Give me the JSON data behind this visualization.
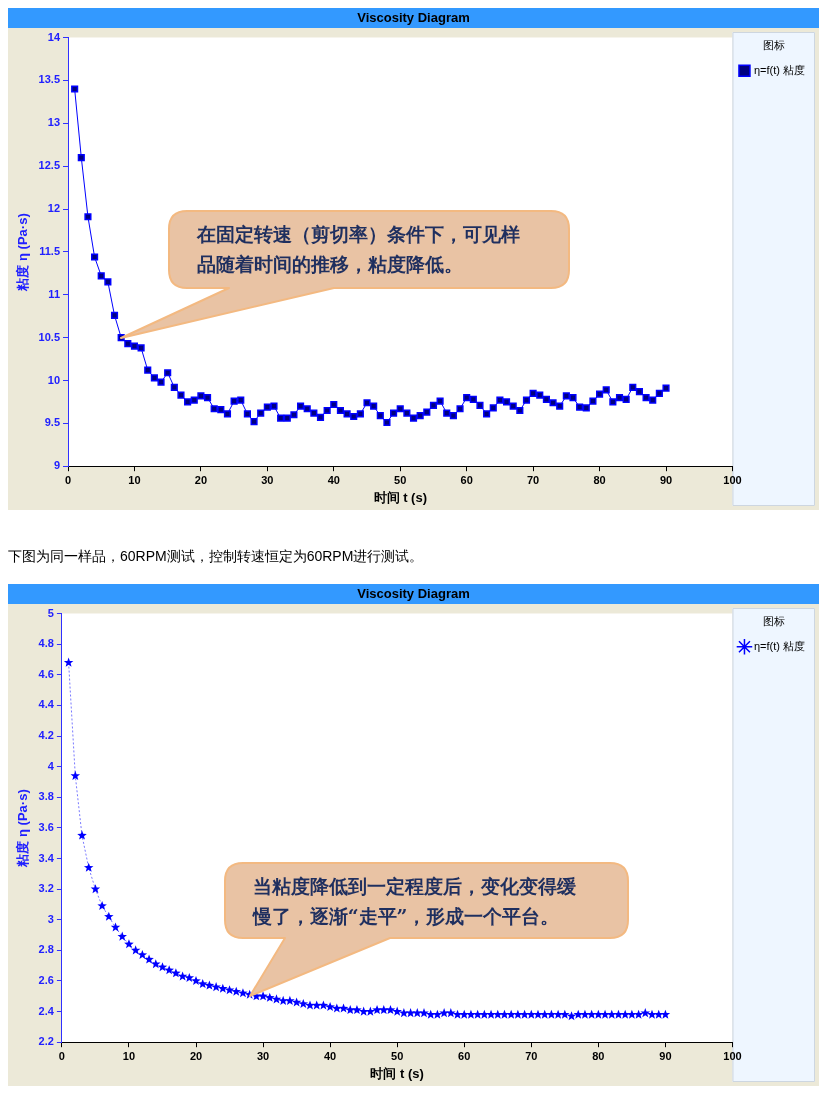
{
  "chart_data": [
    {
      "type": "line",
      "title": "Viscosity Diagram",
      "xlabel": "时间 t (s)",
      "ylabel": "粘度 η (Pa·s)",
      "legend_title": "图标",
      "legend": "right",
      "grid": false,
      "marker": "square",
      "line_style": "solid",
      "x": [
        1,
        2,
        3,
        4,
        5,
        6,
        7,
        8,
        9,
        10,
        11,
        12,
        13,
        14,
        15,
        16,
        17,
        18,
        19,
        20,
        21,
        22,
        23,
        24,
        25,
        26,
        27,
        28,
        29,
        30,
        31,
        32,
        33,
        34,
        35,
        36,
        37,
        38,
        39,
        40,
        41,
        42,
        43,
        44,
        45,
        46,
        47,
        48,
        49,
        50,
        51,
        52,
        53,
        54,
        55,
        56,
        57,
        58,
        59,
        60,
        61,
        62,
        63,
        64,
        65,
        66,
        67,
        68,
        69,
        70,
        71,
        72,
        73,
        74,
        75,
        76,
        77,
        78,
        79,
        80,
        81,
        82,
        83,
        84,
        85,
        86,
        87,
        88,
        89,
        90
      ],
      "series": [
        {
          "name": "η=f(t) 粘度",
          "color": "#0000ff",
          "values": [
            13.4,
            12.6,
            11.91,
            11.44,
            11.22,
            11.15,
            10.76,
            10.5,
            10.43,
            10.4,
            10.38,
            10.12,
            10.03,
            9.98,
            10.09,
            9.92,
            9.83,
            9.75,
            9.77,
            9.82,
            9.8,
            9.67,
            9.66,
            9.61,
            9.76,
            9.77,
            9.61,
            9.52,
            9.62,
            9.69,
            9.7,
            9.56,
            9.56,
            9.6,
            9.7,
            9.67,
            9.62,
            9.57,
            9.65,
            9.72,
            9.65,
            9.61,
            9.58,
            9.61,
            9.74,
            9.7,
            9.59,
            9.51,
            9.62,
            9.67,
            9.62,
            9.56,
            9.59,
            9.63,
            9.71,
            9.76,
            9.62,
            9.59,
            9.67,
            9.8,
            9.78,
            9.71,
            9.61,
            9.68,
            9.77,
            9.75,
            9.7,
            9.65,
            9.77,
            9.85,
            9.83,
            9.78,
            9.74,
            9.7,
            9.82,
            9.8,
            9.69,
            9.68,
            9.76,
            9.84,
            9.89,
            9.75,
            9.8,
            9.78,
            9.92,
            9.87,
            9.8,
            9.77,
            9.85,
            9.91
          ]
        }
      ],
      "xlim": [
        0,
        100
      ],
      "xticks": [
        0,
        10,
        20,
        30,
        40,
        50,
        60,
        70,
        80,
        90,
        100
      ],
      "ylim": [
        9,
        14
      ],
      "yticks": [
        9,
        9.5,
        10,
        10.5,
        11,
        11.5,
        12,
        12.5,
        13,
        13.5,
        14
      ],
      "annotations": [
        "在固定转速（剪切率）条件下，可见样品随着时间的推移，粘度降低。"
      ]
    },
    {
      "type": "line",
      "title": "Viscosity Diagram",
      "subtitle": "下图为同一样品，60RPM测试，控制转速恒定为60RPM进行测试。",
      "xlabel": "时间 t (s)",
      "ylabel": "粘度 η (Pa·s)",
      "legend_title": "图标",
      "legend": "right",
      "grid": false,
      "marker": "star",
      "line_style": "dotted",
      "x": [
        1,
        2,
        3,
        4,
        5,
        6,
        7,
        8,
        9,
        10,
        11,
        12,
        13,
        14,
        15,
        16,
        17,
        18,
        19,
        20,
        21,
        22,
        23,
        24,
        25,
        26,
        27,
        28,
        29,
        30,
        31,
        32,
        33,
        34,
        35,
        36,
        37,
        38,
        39,
        40,
        41,
        42,
        43,
        44,
        45,
        46,
        47,
        48,
        49,
        50,
        51,
        52,
        53,
        54,
        55,
        56,
        57,
        58,
        59,
        60,
        61,
        62,
        63,
        64,
        65,
        66,
        67,
        68,
        69,
        70,
        71,
        72,
        73,
        74,
        75,
        76,
        77,
        78,
        79,
        80,
        81,
        82,
        83,
        84,
        85,
        86,
        87,
        88,
        89,
        90
      ],
      "series": [
        {
          "name": "η=f(t) 粘度",
          "color": "#0000ff",
          "values": [
            4.68,
            3.94,
            3.55,
            3.34,
            3.2,
            3.09,
            3.02,
            2.95,
            2.89,
            2.84,
            2.8,
            2.77,
            2.74,
            2.71,
            2.69,
            2.67,
            2.65,
            2.63,
            2.62,
            2.6,
            2.58,
            2.57,
            2.56,
            2.55,
            2.54,
            2.53,
            2.52,
            2.51,
            2.5,
            2.5,
            2.49,
            2.48,
            2.47,
            2.47,
            2.46,
            2.45,
            2.44,
            2.44,
            2.44,
            2.43,
            2.42,
            2.42,
            2.41,
            2.41,
            2.4,
            2.4,
            2.41,
            2.41,
            2.41,
            2.4,
            2.39,
            2.39,
            2.39,
            2.39,
            2.38,
            2.38,
            2.39,
            2.39,
            2.38,
            2.38,
            2.38,
            2.38,
            2.38,
            2.38,
            2.38,
            2.38,
            2.38,
            2.38,
            2.38,
            2.38,
            2.38,
            2.38,
            2.38,
            2.38,
            2.38,
            2.37,
            2.38,
            2.38,
            2.38,
            2.38,
            2.38,
            2.38,
            2.38,
            2.38,
            2.38,
            2.38,
            2.39,
            2.38,
            2.38,
            2.38
          ]
        }
      ],
      "xlim": [
        0,
        100
      ],
      "xticks": [
        0,
        10,
        20,
        30,
        40,
        50,
        60,
        70,
        80,
        90,
        100
      ],
      "ylim": [
        2.2,
        5
      ],
      "yticks": [
        2.2,
        2.4,
        2.6,
        2.8,
        3,
        3.2,
        3.4,
        3.6,
        3.8,
        4,
        4.2,
        4.4,
        4.6,
        4.8,
        5
      ],
      "annotations": [
        "当粘度降低到一定程度后，变化变得缓慢了，逐渐“走平”，形成一个平台。"
      ]
    }
  ]
}
